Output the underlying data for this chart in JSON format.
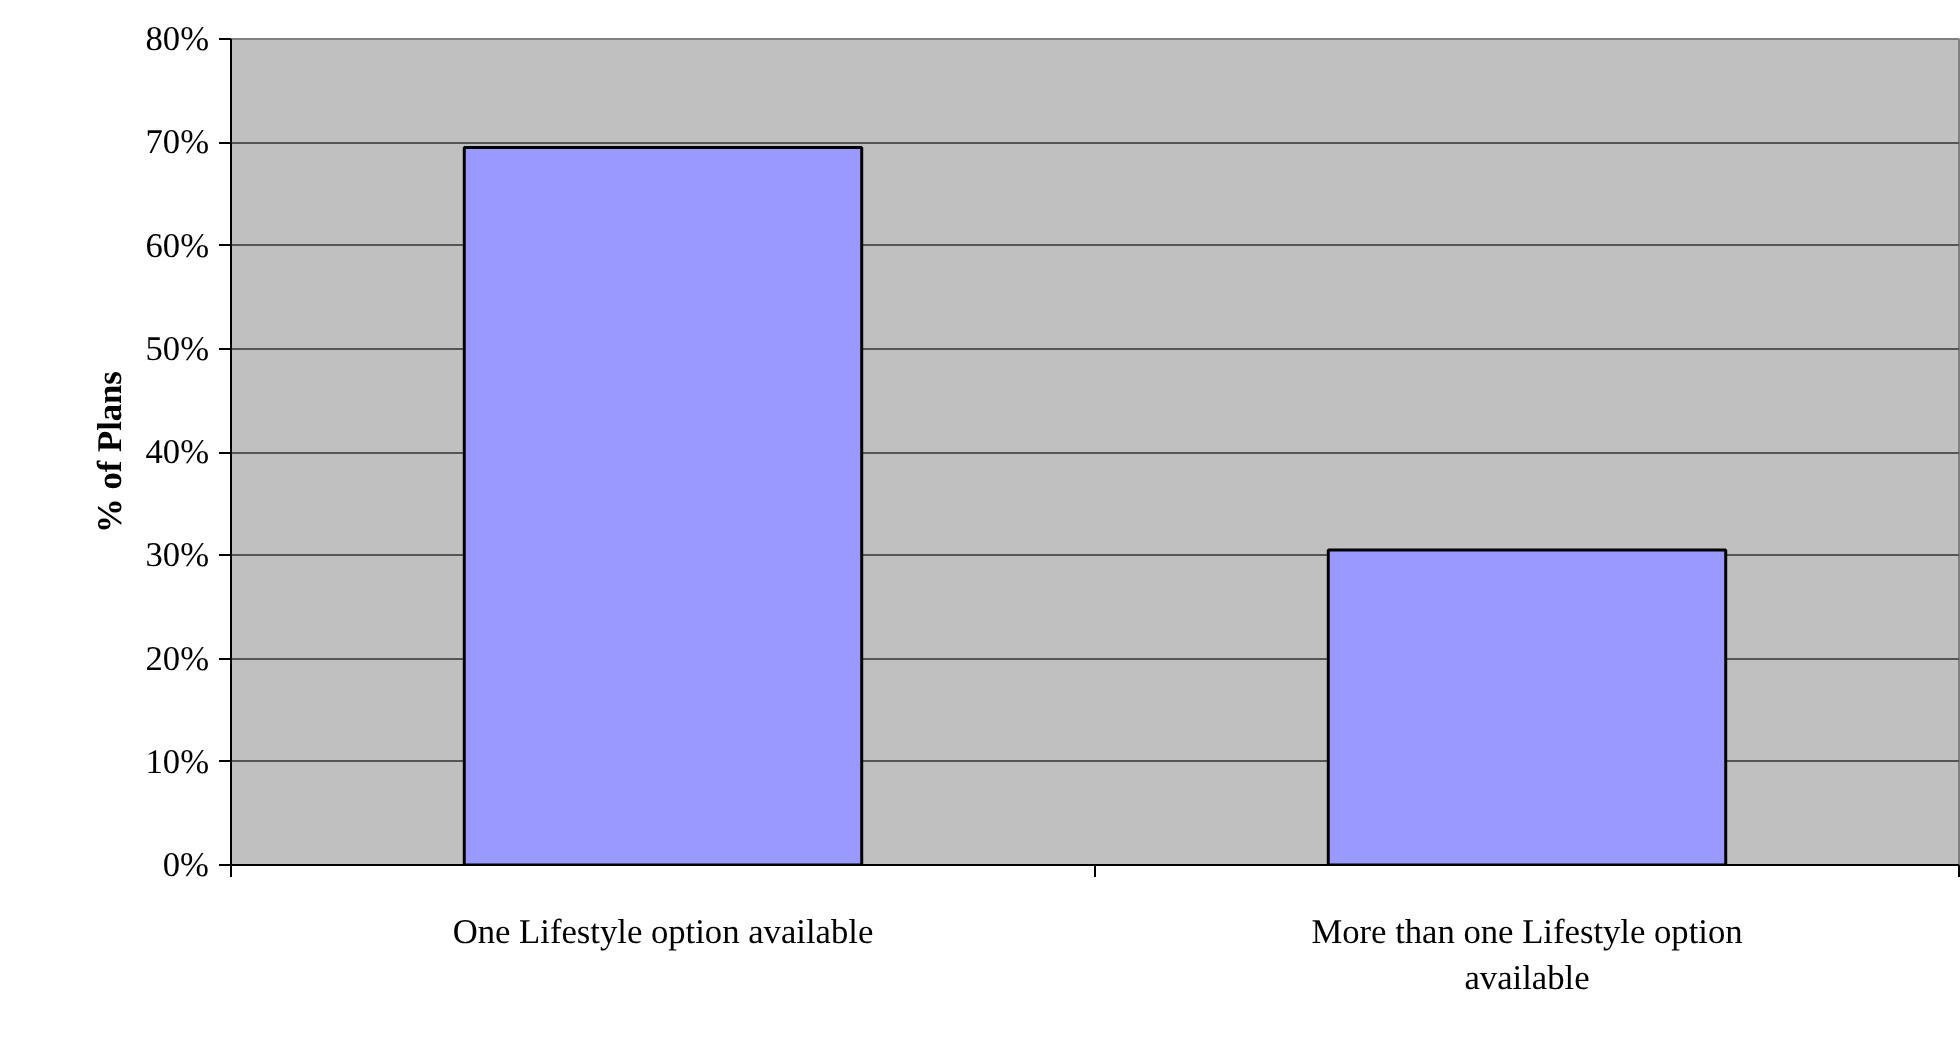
{
  "chart_data": {
    "type": "bar",
    "ylabel": "% of Plans",
    "categories": [
      "One Lifestyle option available",
      "More than one Lifestyle option available"
    ],
    "values": [
      69.5,
      30.5
    ],
    "color": "#9999ff",
    "ylim": [
      0,
      80
    ],
    "yticks": [
      {
        "value": 0,
        "label": "0%"
      },
      {
        "value": 10,
        "label": "10%"
      },
      {
        "value": 20,
        "label": "20%"
      },
      {
        "value": 30,
        "label": "30%"
      },
      {
        "value": 40,
        "label": "40%"
      },
      {
        "value": 50,
        "label": "50%"
      },
      {
        "value": 60,
        "label": "60%"
      },
      {
        "value": 70,
        "label": "70%"
      },
      {
        "value": 80,
        "label": "80%"
      }
    ],
    "grid": "y"
  }
}
